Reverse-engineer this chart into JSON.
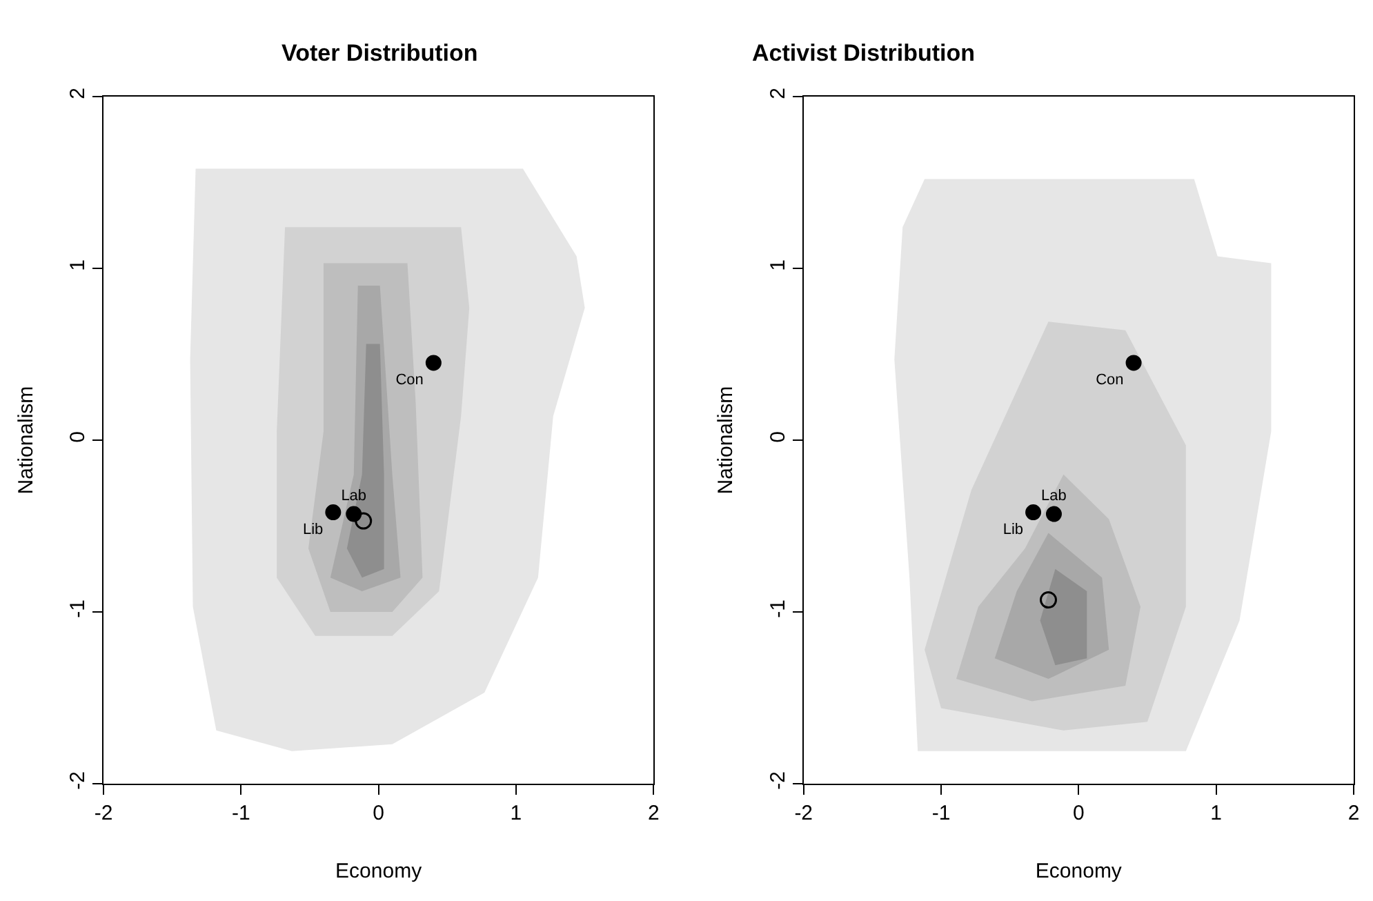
{
  "chart_data": [
    {
      "type": "scatter",
      "title": "Voter Distribution",
      "xlabel": "Economy",
      "ylabel": "Nationalism",
      "xlim": [
        -2,
        2
      ],
      "ylim": [
        -2,
        2
      ],
      "xticks": [
        -2,
        -1,
        0,
        1,
        2
      ],
      "yticks": [
        -2,
        -1,
        0,
        1,
        2
      ],
      "legend": false,
      "series": [
        {
          "type": "area",
          "color": "#e6e6e6",
          "x": [
            -1.33,
            1.05,
            1.44,
            1.5,
            1.27,
            1.16,
            0.77,
            0.1,
            -0.63,
            -1.18,
            -1.35,
            -1.37,
            -1.33
          ],
          "values": [
            1.58,
            1.58,
            1.07,
            0.77,
            0.14,
            -0.8,
            -1.47,
            -1.77,
            -1.81,
            -1.69,
            -0.97,
            0.47,
            1.58
          ]
        },
        {
          "type": "area",
          "color": "#d2d2d2",
          "x": [
            -0.68,
            0.6,
            0.66,
            0.6,
            0.44,
            0.1,
            -0.46,
            -0.74,
            -0.74,
            -0.68
          ],
          "values": [
            1.24,
            1.24,
            0.77,
            0.14,
            -0.88,
            -1.14,
            -1.14,
            -0.8,
            0.05,
            1.24
          ]
        },
        {
          "type": "area",
          "color": "#bebebe",
          "x": [
            -0.4,
            0.21,
            0.27,
            0.32,
            0.1,
            -0.35,
            -0.51,
            -0.4,
            -0.4
          ],
          "values": [
            1.03,
            1.03,
            0.22,
            -0.8,
            -1.0,
            -1.0,
            -0.63,
            0.05,
            1.03
          ]
        },
        {
          "type": "area",
          "color": "#a8a8a8",
          "x": [
            -0.15,
            0.01,
            0.1,
            0.16,
            -0.12,
            -0.35,
            -0.18,
            -0.15
          ],
          "values": [
            0.9,
            0.9,
            -0.2,
            -0.8,
            -0.88,
            -0.8,
            -0.2,
            0.9
          ]
        },
        {
          "type": "area",
          "color": "#8e8e8e",
          "x": [
            -0.09,
            0.01,
            0.04,
            0.04,
            -0.12,
            -0.23,
            -0.12,
            -0.09
          ],
          "values": [
            0.56,
            0.56,
            -0.2,
            -0.75,
            -0.8,
            -0.63,
            -0.2,
            0.56
          ]
        },
        {
          "type": "scatter",
          "marker": "circle",
          "color": "#000000",
          "x": [
            0.4,
            -0.18,
            -0.33
          ],
          "values": [
            0.45,
            -0.43,
            -0.42
          ],
          "value_labels": [
            "Con",
            "Lab",
            "Lib"
          ]
        },
        {
          "type": "scatter",
          "marker": "circle",
          "color": "#000000",
          "x": [
            -0.11
          ],
          "values": [
            -0.47
          ]
        }
      ]
    },
    {
      "type": "scatter",
      "title": "Activist Distribution",
      "xlabel": "Economy",
      "ylabel": "Nationalism",
      "xlim": [
        -2,
        2
      ],
      "ylim": [
        -2,
        2
      ],
      "xticks": [
        -2,
        -1,
        0,
        1,
        2
      ],
      "yticks": [
        -2,
        -1,
        0,
        1,
        2
      ],
      "legend": false,
      "series": [
        {
          "type": "area",
          "color": "#e6e6e6",
          "x": [
            -1.12,
            0.84,
            1.01,
            1.4,
            1.4,
            1.17,
            0.78,
            -1.17,
            -1.23,
            -1.34,
            -1.28,
            -1.12
          ],
          "values": [
            1.52,
            1.52,
            1.07,
            1.03,
            0.05,
            -1.05,
            -1.81,
            -1.81,
            -0.8,
            0.47,
            1.24,
            1.52
          ]
        },
        {
          "type": "area",
          "color": "#d2d2d2",
          "x": [
            -0.22,
            0.34,
            0.78,
            0.78,
            0.5,
            -0.11,
            -1.0,
            -1.12,
            -0.78,
            -0.22
          ],
          "values": [
            0.69,
            0.64,
            -0.03,
            -0.97,
            -1.64,
            -1.69,
            -1.56,
            -1.22,
            -0.29,
            0.69
          ]
        },
        {
          "type": "area",
          "color": "#bebebe",
          "x": [
            -0.11,
            0.22,
            0.45,
            0.34,
            -0.34,
            -0.89,
            -0.73,
            -0.39,
            -0.11
          ],
          "values": [
            -0.2,
            -0.46,
            -0.97,
            -1.43,
            -1.52,
            -1.39,
            -0.97,
            -0.63,
            -0.2
          ]
        },
        {
          "type": "area",
          "color": "#a8a8a8",
          "x": [
            -0.22,
            0.17,
            0.22,
            -0.22,
            -0.61,
            -0.45,
            -0.22
          ],
          "values": [
            -0.54,
            -0.8,
            -1.22,
            -1.39,
            -1.27,
            -0.88,
            -0.54
          ]
        },
        {
          "type": "area",
          "color": "#8e8e8e",
          "x": [
            -0.17,
            0.06,
            0.06,
            -0.17,
            -0.28,
            -0.17
          ],
          "values": [
            -0.75,
            -0.88,
            -1.27,
            -1.31,
            -1.05,
            -0.75
          ]
        },
        {
          "type": "scatter",
          "marker": "circle",
          "color": "#000000",
          "x": [
            0.4,
            -0.18,
            -0.33
          ],
          "values": [
            0.45,
            -0.43,
            -0.42
          ],
          "value_labels": [
            "Con",
            "Lab",
            "Lib"
          ]
        },
        {
          "type": "scatter",
          "marker": "circle",
          "color": "#000000",
          "x": [
            -0.22
          ],
          "values": [
            -0.93
          ]
        }
      ]
    }
  ]
}
